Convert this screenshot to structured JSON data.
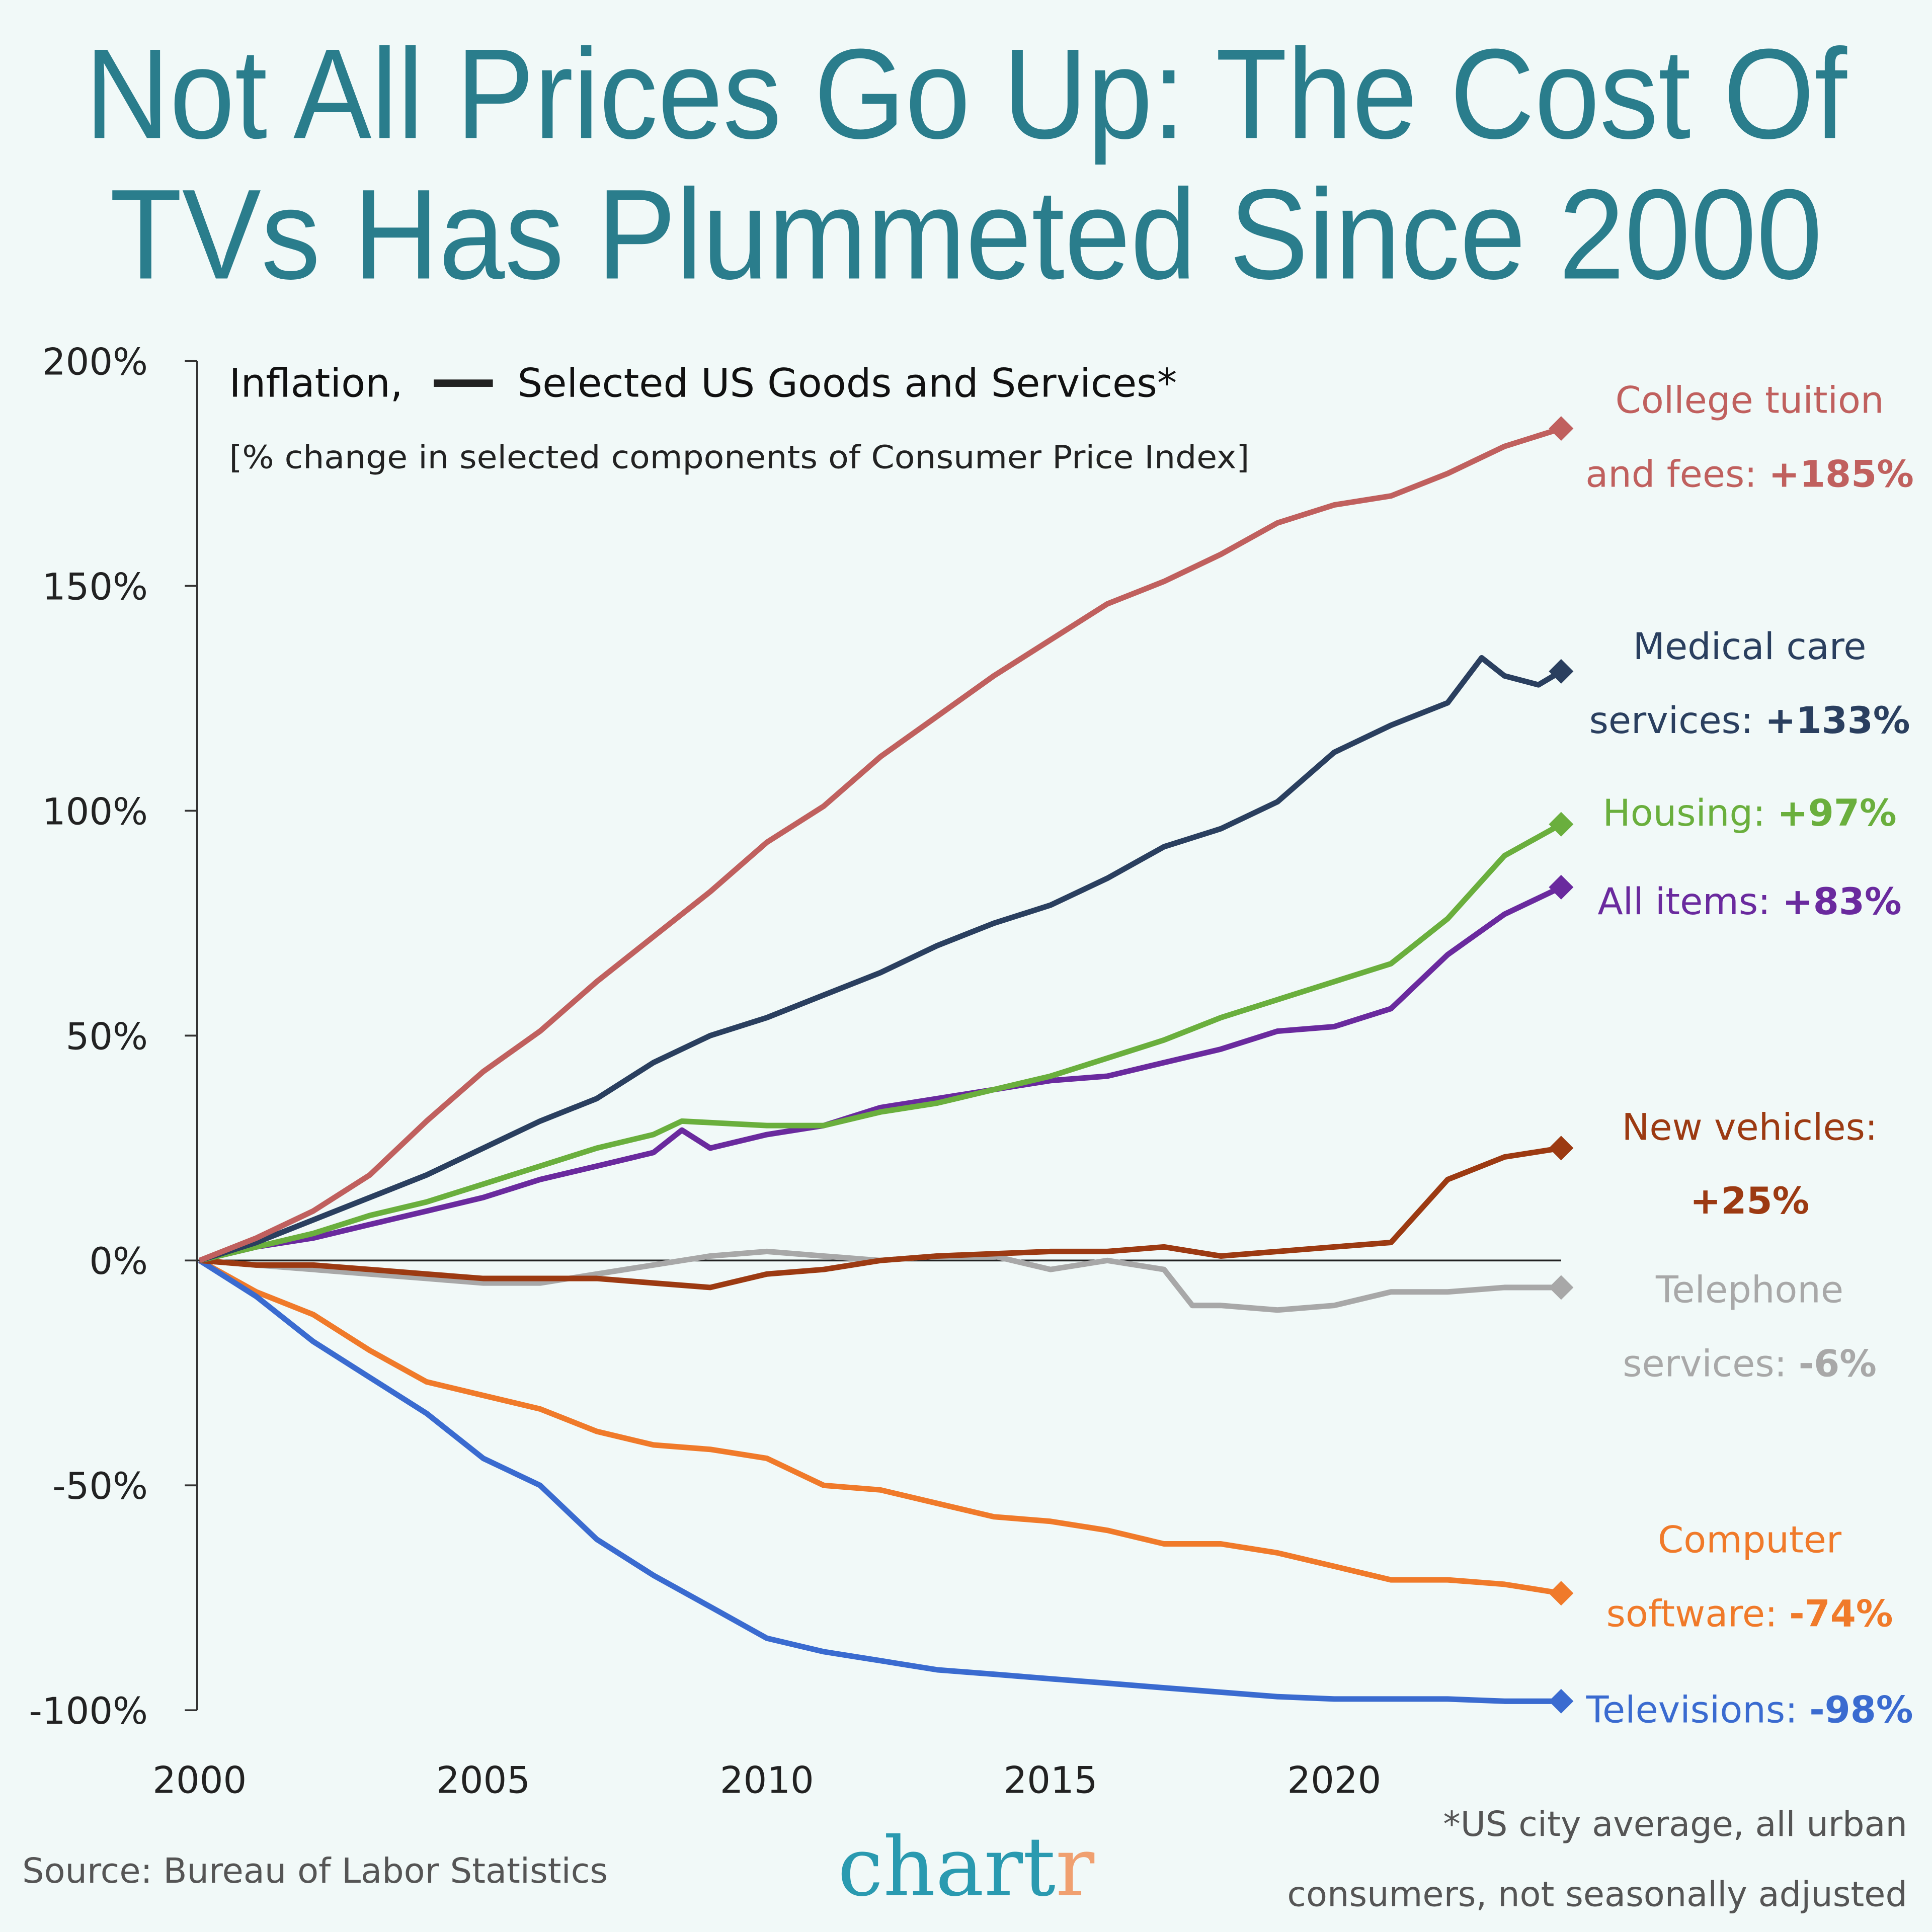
{
  "title_lines": [
    "Not All Prices Go Up: The Cost Of",
    "TVs Has Plummeted Since 2000"
  ],
  "background": "#f1f9f8",
  "title_color": "#2a7d8c",
  "chart_data": {
    "type": "line",
    "legend_header": {
      "prefix": "Inflation,",
      "text": "Selected US Goods and Services*"
    },
    "subtitle": "[% change in selected components of Consumer Price Index]",
    "xlim": [
      2000,
      2024
    ],
    "ylim": [
      -100,
      200
    ],
    "x_ticks": [
      "2000",
      "2005",
      "2010",
      "2015",
      "2020"
    ],
    "y_ticks": [
      "200%",
      "150%",
      "100%",
      "50%",
      "0%",
      "-50%",
      "-100%"
    ],
    "zero_line": true,
    "series": [
      {
        "name": "College tuition and fees",
        "label_lines": [
          "College tuition",
          "and fees: "
        ],
        "value_label": "+185%",
        "color": "#c0605e",
        "x": [
          2000,
          2001,
          2002,
          2003,
          2004,
          2005,
          2006,
          2007,
          2008,
          2009,
          2010,
          2011,
          2012,
          2013,
          2014,
          2015,
          2016,
          2017,
          2018,
          2019,
          2020,
          2021,
          2022,
          2023,
          2024
        ],
        "y": [
          0,
          5,
          11,
          19,
          31,
          42,
          51,
          62,
          72,
          82,
          93,
          101,
          112,
          121,
          130,
          138,
          146,
          151,
          157,
          164,
          168,
          170,
          175,
          181,
          185
        ]
      },
      {
        "name": "Medical care services",
        "label_lines": [
          "Medical care",
          "services: "
        ],
        "value_label": "+133%",
        "color": "#2a3f5f",
        "x": [
          2000,
          2001,
          2002,
          2003,
          2004,
          2005,
          2006,
          2007,
          2008,
          2009,
          2010,
          2011,
          2012,
          2013,
          2014,
          2015,
          2016,
          2017,
          2018,
          2019,
          2020,
          2021,
          2022,
          2022.6,
          2023,
          2023.6,
          2024
        ],
        "y": [
          0,
          4,
          9,
          14,
          19,
          25,
          31,
          36,
          44,
          50,
          54,
          59,
          64,
          70,
          75,
          79,
          85,
          92,
          96,
          102,
          113,
          119,
          124,
          134,
          130,
          128,
          131
        ]
      },
      {
        "name": "Housing",
        "label_lines": [
          "Housing: "
        ],
        "value_label": "+97%",
        "color": "#6aaf3d",
        "x": [
          2000,
          2001,
          2002,
          2003,
          2004,
          2005,
          2006,
          2007,
          2008,
          2008.5,
          2010,
          2011,
          2012,
          2013,
          2014,
          2015,
          2016,
          2017,
          2018,
          2019,
          2020,
          2021,
          2022,
          2023,
          2024
        ],
        "y": [
          0,
          3,
          6,
          10,
          13,
          17,
          21,
          25,
          28,
          31,
          30,
          30,
          33,
          35,
          38,
          41,
          45,
          49,
          54,
          58,
          62,
          66,
          76,
          90,
          97
        ]
      },
      {
        "name": "All items",
        "label_lines": [
          "All items: "
        ],
        "value_label": "+83%",
        "color": "#6a2a9e",
        "x": [
          2000,
          2001,
          2002,
          2003,
          2004,
          2005,
          2006,
          2007,
          2008,
          2008.5,
          2009,
          2010,
          2011,
          2012,
          2013,
          2014,
          2015,
          2016,
          2017,
          2018,
          2019,
          2020,
          2021,
          2022,
          2023,
          2024
        ],
        "y": [
          0,
          3,
          5,
          8,
          11,
          14,
          18,
          21,
          24,
          29,
          25,
          28,
          30,
          34,
          36,
          38,
          40,
          41,
          44,
          47,
          51,
          52,
          56,
          68,
          77,
          83
        ]
      },
      {
        "name": "New vehicles",
        "label_lines": [
          "New vehicles:",
          ""
        ],
        "value_label": "+25%",
        "color": "#9c3a12",
        "x": [
          2000,
          2001,
          2002,
          2003,
          2004,
          2005,
          2006,
          2007,
          2008,
          2009,
          2010,
          2011,
          2012,
          2013,
          2014,
          2015,
          2016,
          2017,
          2018,
          2019,
          2020,
          2021,
          2022,
          2023,
          2024
        ],
        "y": [
          0,
          -1,
          -1,
          -2,
          -3,
          -4,
          -4,
          -4,
          -5,
          -6,
          -3,
          -2,
          0,
          1,
          1.5,
          2,
          2,
          3,
          1,
          2,
          3,
          4,
          18,
          23,
          25
        ]
      },
      {
        "name": "Telephone services",
        "label_lines": [
          "Telephone",
          "services: "
        ],
        "value_label": "-6%",
        "color": "#a8a8a8",
        "x": [
          2000,
          2001,
          2002,
          2003,
          2004,
          2005,
          2006,
          2007,
          2008,
          2009,
          2010,
          2011,
          2012,
          2013,
          2014,
          2015,
          2016,
          2017,
          2017.5,
          2018,
          2019,
          2020,
          2021,
          2022,
          2023,
          2024
        ],
        "y": [
          0,
          -1,
          -2,
          -3,
          -4,
          -5,
          -5,
          -3,
          -1,
          1,
          2,
          1,
          0,
          1,
          1,
          -2,
          0,
          -2,
          -10,
          -10,
          -11,
          -10,
          -7,
          -7,
          -6,
          -6
        ]
      },
      {
        "name": "Computer software",
        "label_lines": [
          "Computer",
          "software: "
        ],
        "value_label": "-74%",
        "color": "#f07a2a",
        "x": [
          2000,
          2001,
          2002,
          2003,
          2004,
          2005,
          2006,
          2007,
          2008,
          2009,
          2010,
          2011,
          2012,
          2013,
          2014,
          2015,
          2016,
          2017,
          2018,
          2019,
          2020,
          2021,
          2022,
          2023,
          2024
        ],
        "y": [
          0,
          -7,
          -12,
          -20,
          -27,
          -30,
          -33,
          -38,
          -41,
          -42,
          -44,
          -50,
          -51,
          -54,
          -57,
          -58,
          -60,
          -63,
          -63,
          -65,
          -68,
          -71,
          -71,
          -72,
          -74
        ]
      },
      {
        "name": "Televisions",
        "label_lines": [
          "Televisions: "
        ],
        "value_label": "-98%",
        "color": "#3a6bd0",
        "x": [
          2000,
          2001,
          2002,
          2003,
          2004,
          2005,
          2006,
          2007,
          2008,
          2009,
          2010,
          2011,
          2012,
          2013,
          2014,
          2015,
          2016,
          2017,
          2018,
          2019,
          2020,
          2021,
          2022,
          2023,
          2024
        ],
        "y": [
          0,
          -8,
          -18,
          -26,
          -34,
          -44,
          -50,
          -62,
          -70,
          -77,
          -84,
          -87,
          -89,
          -91,
          -92,
          -93,
          -94,
          -95,
          -96,
          -97,
          -97.5,
          -97.5,
          -97.5,
          -98,
          -98
        ]
      }
    ]
  },
  "footer": {
    "source": "Source: Bureau of Labor Statistics",
    "logo_main": "chart",
    "logo_accent": "r",
    "footnote_lines": [
      "*US city average, all urban",
      "consumers, not seasonally adjusted"
    ]
  }
}
